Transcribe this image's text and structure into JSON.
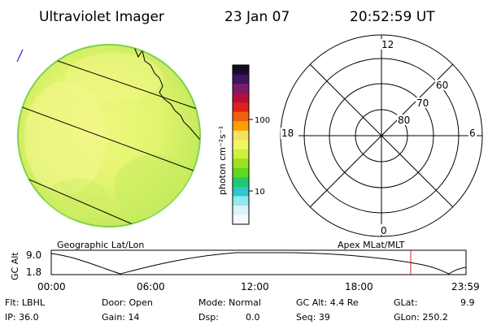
{
  "header": {
    "instrument": "Ultraviolet Imager",
    "date": "23 Jan 07",
    "time": "20:52:59 UT"
  },
  "colorbar": {
    "unit_label": "photon cm⁻²s⁻¹",
    "tick_labels": [
      "100",
      "10"
    ],
    "colors": [
      "#1a0a22",
      "#3c1460",
      "#7a1a6a",
      "#b0103a",
      "#e0201a",
      "#f06010",
      "#f8a000",
      "#f8e060",
      "#f0f860",
      "#d0f040",
      "#a0e020",
      "#60d820",
      "#20c870",
      "#30c8c8",
      "#90e8f0",
      "#d8f4f8",
      "#f4fafc"
    ]
  },
  "image_panel": {
    "label": "Geographic Lat/Lon",
    "fill_color": "#dcf06a",
    "limb_color": "#7fd24a"
  },
  "polar_panel": {
    "label": "Apex MLat/MLT",
    "mlt_labels": [
      "12",
      "18",
      "6",
      "0"
    ],
    "lat_labels": [
      "60",
      "70",
      "80"
    ]
  },
  "altitude_plot": {
    "ylabel": "GC Alt",
    "y_ticks": [
      "9.0",
      "1.8"
    ],
    "x_ticks": [
      "00:00",
      "06:00",
      "12:00",
      "18:00",
      "23:59"
    ],
    "current_time_marker": "20:52:59",
    "marker_color": "#d02020"
  },
  "status": {
    "flt": "Flt: LBHL",
    "ip": "IP: 36.0",
    "door": "Door: Open",
    "gain": "Gain: 14",
    "mode": "Mode: Normal",
    "dsp": "Dsp:",
    "dsp_value": "0.0",
    "gc_alt": "GC Alt: 4.4 Re",
    "seq": "Seq: 39",
    "glat": "GLat:",
    "glat_value": "9.9",
    "glon": "GLon: 250.2"
  }
}
